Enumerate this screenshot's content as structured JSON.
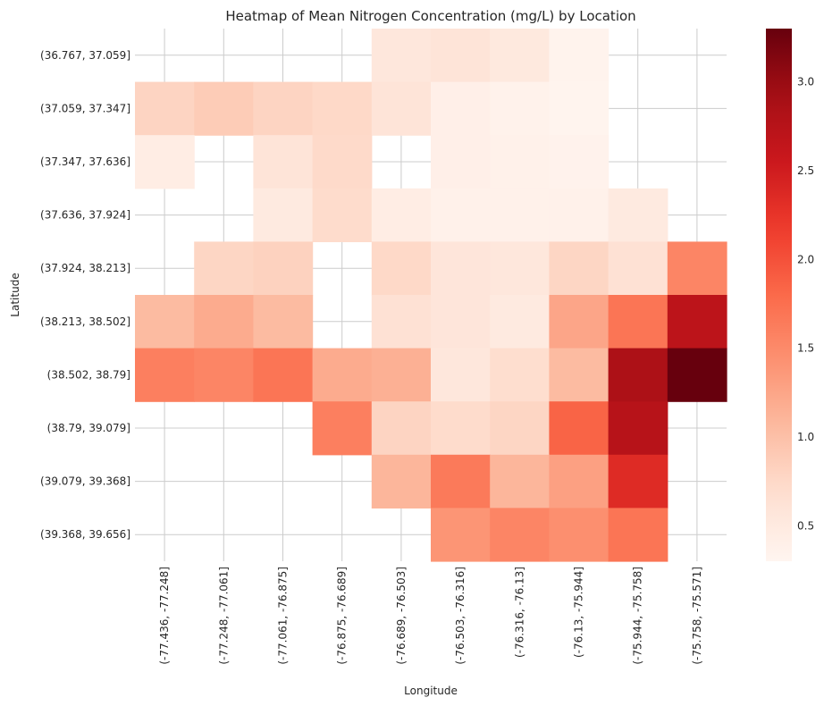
{
  "chart_data": {
    "type": "heatmap",
    "title": "Heatmap of Mean Nitrogen Concentration (mg/L) by Location",
    "xlabel": "Longitude",
    "ylabel": "Latitude",
    "x_categories": [
      "(-77.436, -77.248]",
      "(-77.248, -77.061]",
      "(-77.061, -76.875]",
      "(-76.875, -76.689]",
      "(-76.689, -76.503]",
      "(-76.503, -76.316]",
      "(-76.316, -76.13]",
      "(-76.13, -75.944]",
      "(-75.944, -75.758]",
      "(-75.758, -75.571]"
    ],
    "y_categories": [
      "(36.767, 37.059]",
      "(37.059, 37.347]",
      "(37.347, 37.636]",
      "(37.636, 37.924]",
      "(37.924, 38.213]",
      "(38.213, 38.502]",
      "(38.502, 38.79]",
      "(38.79, 39.079]",
      "(39.079, 39.368]",
      "(39.368, 39.656]"
    ],
    "values": [
      [
        null,
        null,
        null,
        null,
        0.55,
        0.6,
        0.52,
        0.34,
        null,
        null
      ],
      [
        0.8,
        0.88,
        0.8,
        0.75,
        0.6,
        0.4,
        0.36,
        0.32,
        null,
        null
      ],
      [
        0.45,
        null,
        0.6,
        0.74,
        null,
        0.4,
        0.38,
        0.35,
        null,
        null
      ],
      [
        null,
        null,
        0.5,
        0.72,
        0.45,
        0.38,
        0.37,
        0.38,
        0.5,
        null
      ],
      [
        null,
        0.78,
        0.82,
        null,
        0.75,
        0.58,
        0.55,
        0.78,
        0.65,
        1.55
      ],
      [
        1.05,
        1.2,
        1.05,
        null,
        0.65,
        0.58,
        0.5,
        1.25,
        1.7,
        2.7
      ],
      [
        1.6,
        1.55,
        1.7,
        1.2,
        1.15,
        0.55,
        0.7,
        1.05,
        2.85,
        3.3
      ],
      [
        null,
        null,
        null,
        1.6,
        0.8,
        0.72,
        0.78,
        1.85,
        2.75,
        null
      ],
      [
        null,
        null,
        null,
        null,
        1.1,
        1.65,
        1.1,
        1.3,
        2.35,
        null
      ],
      [
        null,
        null,
        null,
        null,
        null,
        1.4,
        1.55,
        1.45,
        1.7,
        null
      ]
    ],
    "colorbar": {
      "min": 0.3,
      "max": 3.3,
      "ticks": [
        0.5,
        1.0,
        1.5,
        2.0,
        2.5,
        3.0
      ],
      "tick_labels": [
        "0.5",
        "1.0",
        "1.5",
        "2.0",
        "2.5",
        "3.0"
      ],
      "colormap": "Reds"
    },
    "grid": true,
    "legend": "colorbar-right"
  }
}
